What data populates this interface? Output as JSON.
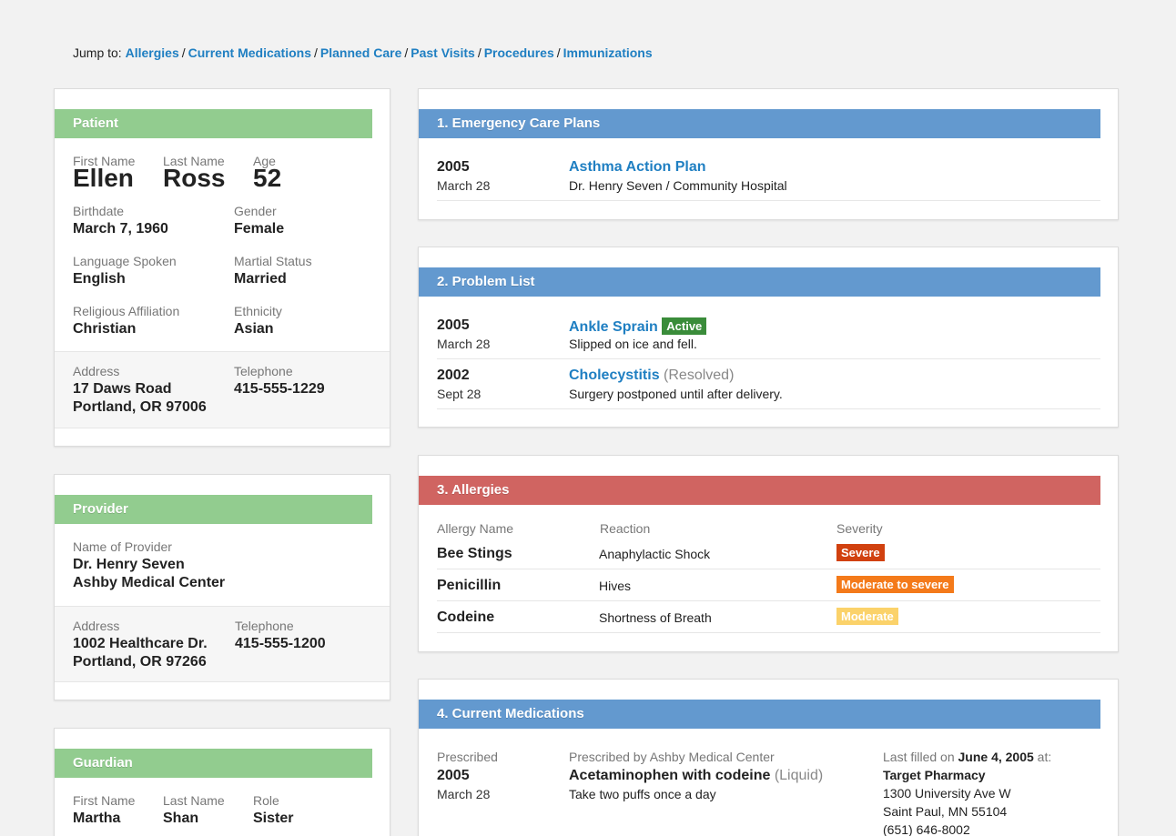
{
  "jump": {
    "label": "Jump to:",
    "links": [
      "Allergies",
      "Current Medications",
      "Planned Care",
      "Past Visits",
      "Procedures",
      "Immunizations"
    ]
  },
  "patient": {
    "title": "Patient",
    "first_name_label": "First Name",
    "first_name": "Ellen",
    "last_name_label": "Last Name",
    "last_name": "Ross",
    "age_label": "Age",
    "age": "52",
    "birthdate_label": "Birthdate",
    "birthdate": "March 7, 1960",
    "gender_label": "Gender",
    "gender": "Female",
    "language_label": "Language Spoken",
    "language": "English",
    "marital_label": "Martial Status",
    "marital": "Married",
    "religion_label": "Religious Affiliation",
    "religion": "Christian",
    "ethnicity_label": "Ethnicity",
    "ethnicity": "Asian",
    "address_label": "Address",
    "address_line1": "17 Daws Road",
    "address_line2": "Portland, OR 97006",
    "telephone_label": "Telephone",
    "telephone": "415-555-1229"
  },
  "provider": {
    "title": "Provider",
    "name_label": "Name of Provider",
    "name": "Dr. Henry Seven",
    "org": "Ashby Medical Center",
    "address_label": "Address",
    "address_line1": "1002 Healthcare Dr.",
    "address_line2": "Portland, OR 97266",
    "telephone_label": "Telephone",
    "telephone": "415-555-1200"
  },
  "guardian": {
    "title": "Guardian",
    "first_name_label": "First Name",
    "first_name": "Martha",
    "last_name_label": "Last Name",
    "last_name": "Shan",
    "role_label": "Role",
    "role": "Sister"
  },
  "emergency": {
    "title": "1. Emergency Care Plans",
    "items": [
      {
        "year": "2005",
        "date": "March 28",
        "title": "Asthma Action Plan",
        "detail": "Dr. Henry Seven / Community Hospital"
      }
    ]
  },
  "problems": {
    "title": "2. Problem List",
    "items": [
      {
        "year": "2005",
        "date": "March 28",
        "title": "Ankle Sprain",
        "badge": "Active",
        "detail": "Slipped on ice and fell."
      },
      {
        "year": "2002",
        "date": "Sept 28",
        "title": "Cholecystitis",
        "status": "(Resolved)",
        "detail": "Surgery postponed until after delivery."
      }
    ]
  },
  "allergies": {
    "title": "3. Allergies",
    "col_name": "Allergy Name",
    "col_reaction": "Reaction",
    "col_severity": "Severity",
    "rows": [
      {
        "name": "Bee Stings",
        "reaction": "Anaphylactic Shock",
        "severity": "Severe"
      },
      {
        "name": "Penicillin",
        "reaction": "Hives",
        "severity": "Moderate to severe"
      },
      {
        "name": "Codeine",
        "reaction": "Shortness of Breath",
        "severity": "Moderate"
      }
    ]
  },
  "medications": {
    "title": "4. Current Medications",
    "prescribed_label": "Prescribed",
    "prescribed_by_label": "Prescribed by Ashby Medical Center",
    "last_filled_prefix": "Last filled on",
    "last_filled_date": "June 4, 2005",
    "last_filled_suffix": "at:",
    "year": "2005",
    "date": "March 28",
    "drug": "Acetaminophen with codeine",
    "form": "(Liquid)",
    "instructions": "Take two puffs once a day",
    "pharmacy": "Target Pharmacy",
    "pharmacy_addr1": "1300 University Ave W",
    "pharmacy_addr2": "Saint Paul, MN 55104",
    "pharmacy_phone": "(651) 646-8002"
  },
  "colors": {
    "link": "#1f7fc2",
    "green_header": "#92cc8f",
    "blue_header": "#6399cf",
    "red_header": "#d06461",
    "active": "#3a8c3a",
    "severe": "#d1410f",
    "moderate_to_severe": "#f47a1a",
    "moderate": "#fbd26a"
  }
}
